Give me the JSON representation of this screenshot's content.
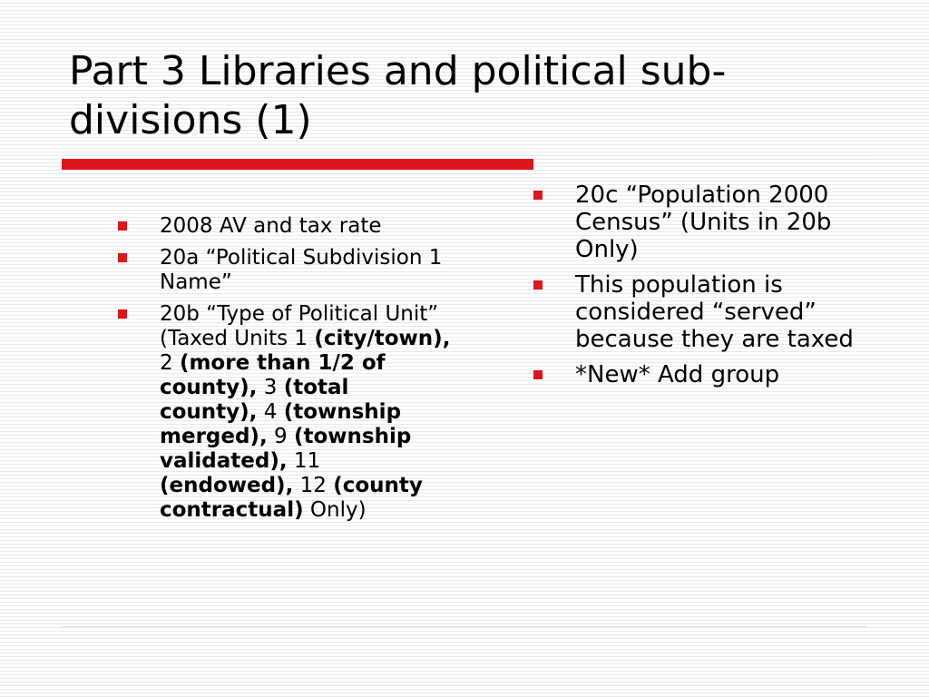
{
  "slide": {
    "title": "Part 3 Libraries and political sub-divisions (1)",
    "accent_color": "#e0151b"
  },
  "left_bullets": {
    "item1": "2008 AV and tax rate",
    "item2": "20a “Political Subdivision 1 Name”",
    "item3": {
      "lead": "20b “Type of Political Unit” (Taxed Units 1 ",
      "s1": "(city/town),",
      "n2": " 2 ",
      "s2": "(more than 1/2 of county),",
      "n3": " 3 ",
      "s3": "(total county),",
      "n4": " 4 ",
      "s4": "(township merged),",
      "n9": " 9 ",
      "s9": "(township validated),",
      "n11": " 11 ",
      "s11": "(endowed),",
      "n12": " 12 ",
      "s12": "(county contractual)",
      "tail": " Only)"
    }
  },
  "right_bullets": {
    "item1": "20c “Population 2000 Census” (Units in 20b Only)",
    "item2": "This population is considered “served” because they are taxed",
    "item3": "*New* Add group"
  },
  "icons": {
    "bullet": "red-square-bullet-icon"
  }
}
